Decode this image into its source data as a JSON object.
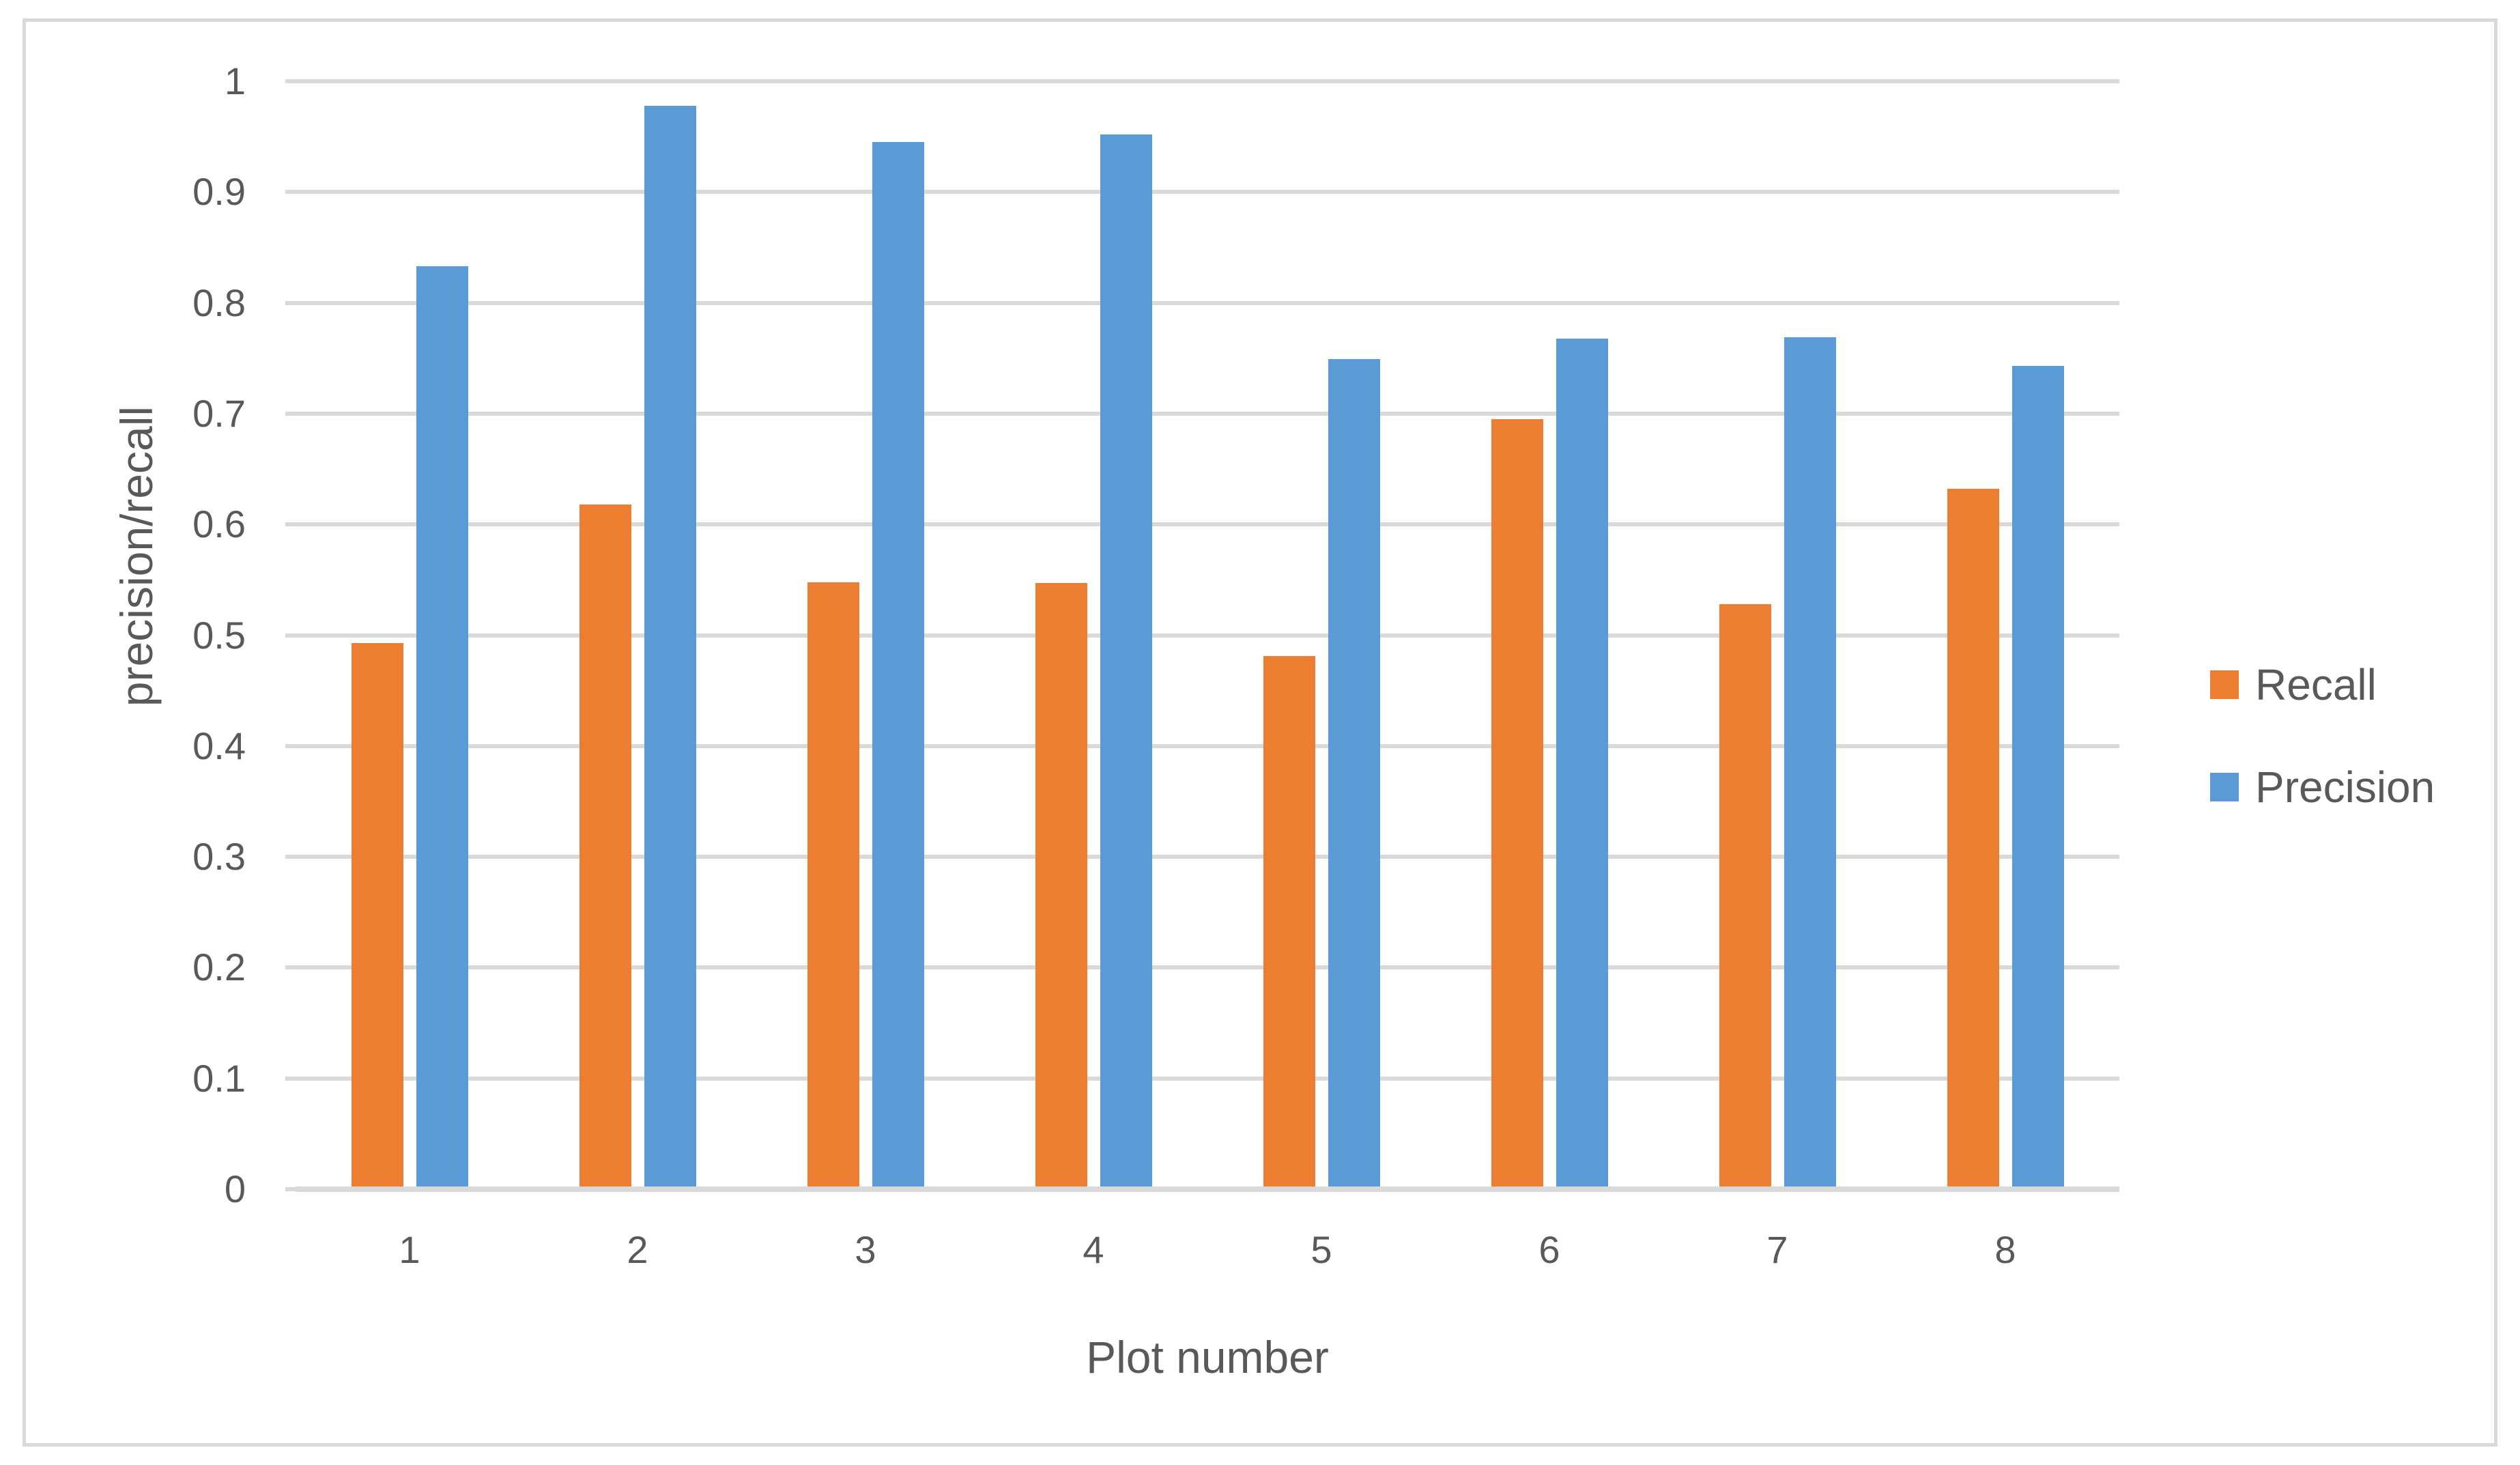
{
  "chart_data": {
    "type": "bar",
    "xlabel": "Plot number",
    "ylabel": "precision/recall",
    "categories": [
      "1",
      "2",
      "3",
      "4",
      "5",
      "6",
      "7",
      "8"
    ],
    "series": [
      {
        "name": "Recall",
        "color": "#ED7D31",
        "values": [
          0.493,
          0.618,
          0.548,
          0.547,
          0.481,
          0.695,
          0.528,
          0.632
        ]
      },
      {
        "name": "Precision",
        "color": "#5B9BD5",
        "values": [
          0.833,
          0.978,
          0.945,
          0.952,
          0.749,
          0.768,
          0.769,
          0.743
        ]
      }
    ],
    "ylim": [
      0,
      1
    ],
    "y_ticks": [
      {
        "v": 0,
        "label": "0"
      },
      {
        "v": 0.1,
        "label": "0.1"
      },
      {
        "v": 0.2,
        "label": "0.2"
      },
      {
        "v": 0.3,
        "label": "0.3"
      },
      {
        "v": 0.4,
        "label": "0.4"
      },
      {
        "v": 0.5,
        "label": "0.5"
      },
      {
        "v": 0.6,
        "label": "0.6"
      },
      {
        "v": 0.7,
        "label": "0.7"
      },
      {
        "v": 0.8,
        "label": "0.8"
      },
      {
        "v": 0.9,
        "label": "0.9"
      },
      {
        "v": 1,
        "label": "1"
      }
    ],
    "grid": true,
    "legend_position": "right",
    "colors": {
      "gridline": "#D9D9D9",
      "border": "#D9D9D9",
      "axis_text": "#595959"
    }
  }
}
